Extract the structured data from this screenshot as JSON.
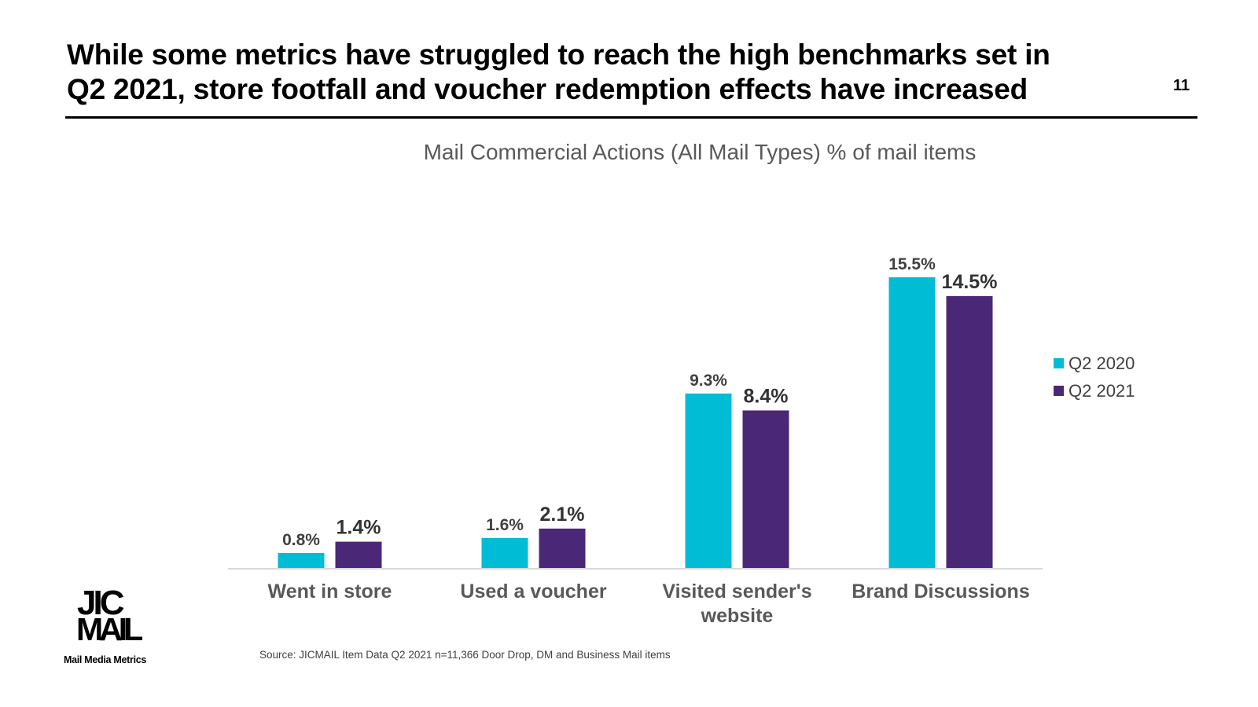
{
  "slide": {
    "headline_line1": "While some metrics have struggled to reach the high benchmarks set in",
    "headline_line2": "Q2 2021, store footfall and voucher redemption effects have increased",
    "page_number": "11",
    "source_note": "Source: JICMAIL Item Data Q2 2021 n=11,366 Door Drop, DM and Business Mail items",
    "logo": {
      "line1": "JIC",
      "line2": "MAIL",
      "tagline": "Mail Media Metrics"
    }
  },
  "colors": {
    "q2_2020": "#00BCD4",
    "q2_2021": "#4A2877",
    "axis": "#D9D9D9",
    "label_grey": "#404040",
    "label_2020": "#404040",
    "label_2021": "#333333"
  },
  "chart_data": {
    "type": "bar",
    "title": "Mail Commercial Actions (All Mail Types) % of mail items",
    "categories": [
      "Went in store",
      "Used a voucher",
      "Visited sender's website",
      "Brand Discussions"
    ],
    "category_lines": [
      [
        "Went in store"
      ],
      [
        "Used a voucher"
      ],
      [
        "Visited sender's",
        "website"
      ],
      [
        "Brand Discussions"
      ]
    ],
    "series": [
      {
        "name": "Q2 2020",
        "values": [
          0.8,
          1.6,
          9.3,
          15.5
        ],
        "labels": [
          "0.8%",
          "1.6%",
          "9.3%",
          "15.5%"
        ]
      },
      {
        "name": "Q2 2021",
        "values": [
          1.4,
          2.1,
          8.4,
          14.5
        ],
        "labels": [
          "1.4%",
          "2.1%",
          "8.4%",
          "14.5%"
        ]
      }
    ],
    "xlabel": "",
    "ylabel": "",
    "ylim": [
      0,
      16
    ],
    "grid": false,
    "legend_position": "right"
  }
}
